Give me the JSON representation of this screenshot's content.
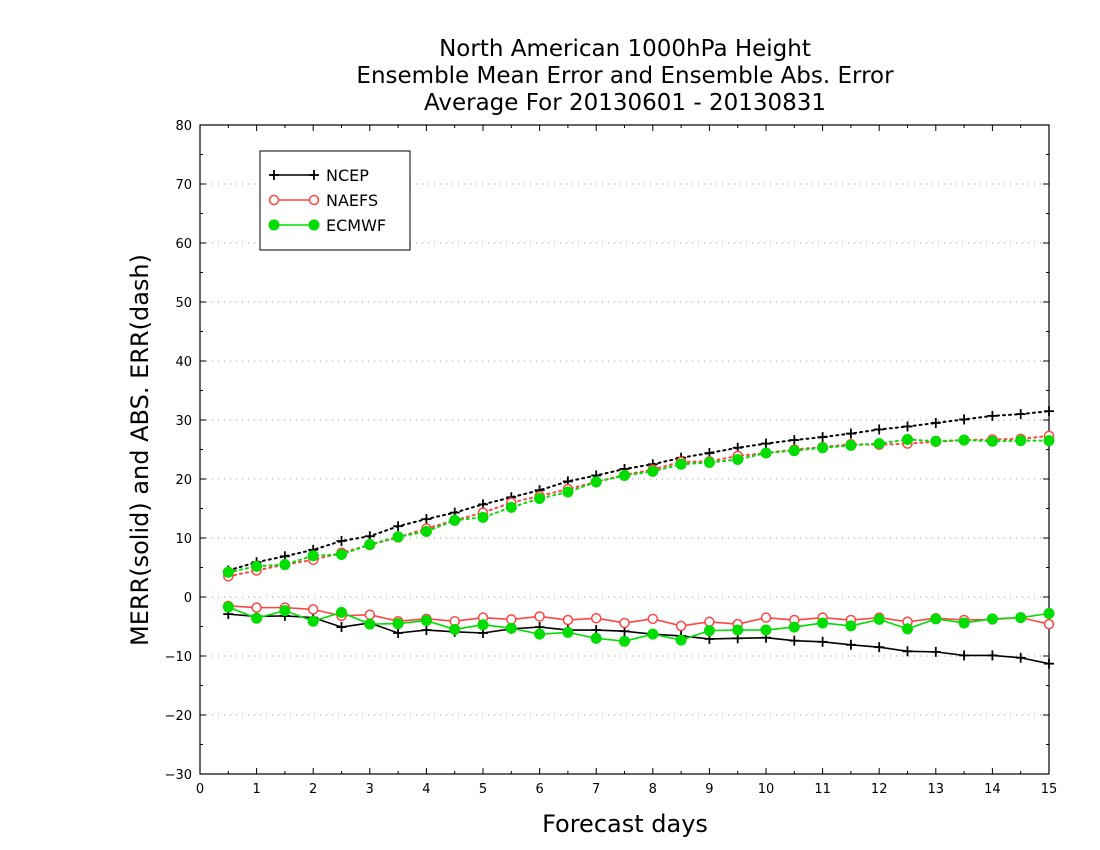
{
  "chart_data": {
    "type": "line",
    "title": [
      "North American 1000hPa Height",
      "Ensemble Mean Error and Ensemble Abs. Error",
      "Average For 20130601 - 20130831"
    ],
    "xlabel": "Forecast days",
    "ylabel": "MERR(solid) and ABS. ERR(dash)",
    "xlim": [
      0,
      15
    ],
    "ylim": [
      -30,
      80
    ],
    "xticks": [
      "0",
      "1",
      "2",
      "3",
      "4",
      "5",
      "6",
      "7",
      "8",
      "9",
      "10",
      "11",
      "12",
      "13",
      "14",
      "15"
    ],
    "yticks": [
      "80",
      "70",
      "60",
      "50",
      "40",
      "30",
      "20",
      "10",
      "0",
      "−10",
      "−20",
      "−30"
    ],
    "grid": "horizontal dotted",
    "legend": {
      "placement": "top-left",
      "entries": [
        "NCEP",
        "NAEFS",
        "ECMWF"
      ]
    },
    "x": [
      0.5,
      1,
      1.5,
      2,
      2.5,
      3,
      3.5,
      4,
      4.5,
      5,
      5.5,
      6,
      6.5,
      7,
      7.5,
      8,
      8.5,
      9,
      9.5,
      10,
      10.5,
      11,
      11.5,
      12,
      12.5,
      13,
      13.5,
      14,
      14.5,
      15
    ],
    "series": [
      {
        "name": "NCEP",
        "kind": "abs_error",
        "style": "dash",
        "color": "#000000",
        "marker": "plus",
        "values": [
          4.5,
          5.9,
          6.9,
          8.0,
          9.5,
          10.3,
          12.0,
          13.2,
          14.3,
          15.7,
          16.9,
          18.1,
          19.6,
          20.6,
          21.7,
          22.5,
          23.6,
          24.4,
          25.3,
          26.0,
          26.6,
          27.1,
          27.7,
          28.4,
          28.9,
          29.5,
          30.1,
          30.7,
          31.0,
          31.5
        ]
      },
      {
        "name": "NAEFS",
        "kind": "abs_error",
        "style": "dash",
        "color": "#ff4444",
        "marker": "open-circle",
        "values": [
          3.5,
          4.5,
          5.5,
          6.3,
          7.5,
          8.8,
          10.1,
          11.6,
          13.0,
          14.3,
          16.0,
          17.1,
          18.3,
          19.5,
          20.7,
          21.6,
          22.9,
          23.0,
          23.9,
          24.4,
          25.0,
          25.4,
          25.9,
          25.8,
          26.0,
          26.3,
          26.6,
          26.7,
          26.8,
          27.3
        ]
      },
      {
        "name": "ECMWF",
        "kind": "abs_error",
        "style": "dash",
        "color": "#00dd00",
        "marker": "filled-circle",
        "values": [
          4.2,
          5.2,
          5.5,
          7.0,
          7.2,
          8.9,
          10.2,
          11.1,
          13.0,
          13.5,
          15.2,
          16.7,
          17.8,
          19.5,
          20.6,
          21.3,
          22.5,
          22.8,
          23.3,
          24.4,
          24.8,
          25.3,
          25.7,
          26.0,
          26.7,
          26.4,
          26.6,
          26.4,
          26.5,
          26.5
        ]
      },
      {
        "name": "NCEP",
        "kind": "mean_error",
        "style": "solid",
        "color": "#000000",
        "marker": "plus",
        "values": [
          -2.9,
          -3.3,
          -3.2,
          -3.5,
          -5.1,
          -4.4,
          -6.1,
          -5.6,
          -5.9,
          -6.1,
          -5.4,
          -5.1,
          -5.6,
          -5.6,
          -5.8,
          -6.3,
          -6.6,
          -7.1,
          -7.0,
          -6.9,
          -7.4,
          -7.6,
          -8.1,
          -8.5,
          -9.2,
          -9.3,
          -9.9,
          -9.9,
          -10.3,
          -11.3
        ]
      },
      {
        "name": "NAEFS",
        "kind": "mean_error",
        "style": "solid",
        "color": "#ff4444",
        "marker": "open-circle",
        "values": [
          -1.5,
          -1.8,
          -1.8,
          -2.1,
          -3.2,
          -3.0,
          -4.1,
          -3.7,
          -4.1,
          -3.5,
          -3.8,
          -3.3,
          -3.9,
          -3.6,
          -4.4,
          -3.7,
          -4.9,
          -4.2,
          -4.6,
          -3.5,
          -3.9,
          -3.5,
          -3.9,
          -3.5,
          -4.2,
          -3.6,
          -3.9,
          -3.8,
          -3.5,
          -4.6
        ]
      },
      {
        "name": "ECMWF",
        "kind": "mean_error",
        "style": "solid",
        "color": "#00dd00",
        "marker": "filled-circle",
        "values": [
          -1.7,
          -3.6,
          -2.3,
          -4.1,
          -2.6,
          -4.6,
          -4.5,
          -4.0,
          -5.5,
          -4.7,
          -5.3,
          -6.3,
          -6.0,
          -7.0,
          -7.5,
          -6.3,
          -7.3,
          -5.7,
          -5.6,
          -5.6,
          -5.1,
          -4.4,
          -4.9,
          -3.8,
          -5.4,
          -3.7,
          -4.4,
          -3.7,
          -3.5,
          -2.8
        ]
      }
    ]
  }
}
